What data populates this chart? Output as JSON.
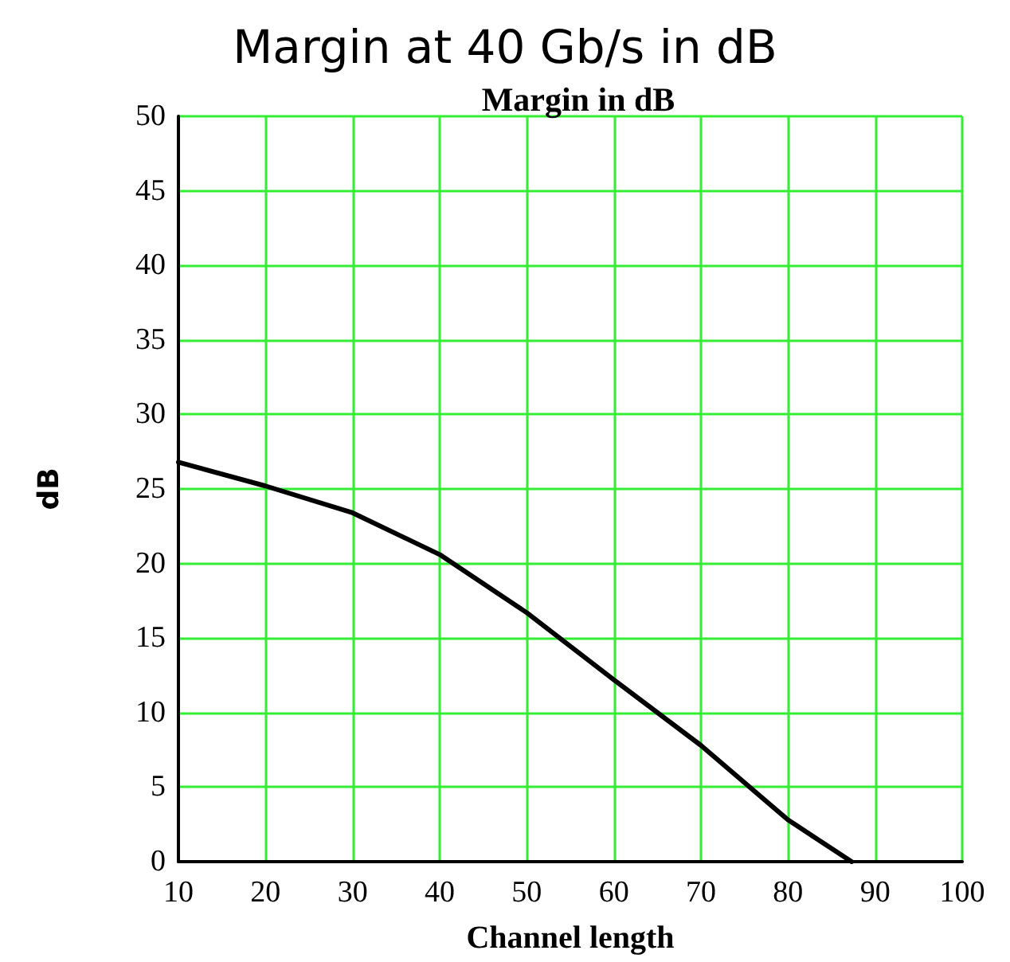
{
  "chart_data": {
    "type": "line",
    "title": "Margin at 40 Gb/s in dB",
    "subtitle": "Margin in dB",
    "xlabel": "Channel length",
    "ylabel": "dB",
    "x": [
      10,
      20,
      30,
      40,
      50,
      60,
      70,
      80,
      87.3
    ],
    "series": [
      {
        "color": "#000000",
        "values": [
          26.8,
          25.2,
          23.4,
          20.6,
          16.7,
          12.2,
          7.8,
          2.8,
          0
        ]
      }
    ],
    "xlim": [
      10,
      100
    ],
    "xticks": [
      10,
      20,
      30,
      40,
      50,
      60,
      70,
      80,
      90,
      100
    ],
    "ylim": [
      0,
      50
    ],
    "yticks": [
      0,
      5,
      10,
      15,
      20,
      25,
      30,
      35,
      40,
      45,
      50
    ],
    "grid": true,
    "marker": "none",
    "line_style": "solid"
  }
}
